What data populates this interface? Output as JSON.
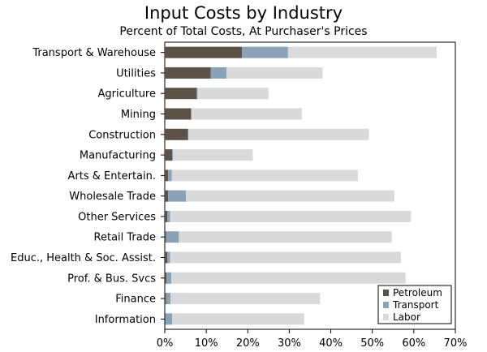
{
  "chart_data": {
    "type": "bar",
    "orientation": "horizontal",
    "stacked": true,
    "title": "Input Costs by Industry",
    "subtitle": "Percent of Total Costs, At Purchaser's Prices",
    "xlabel": "",
    "ylabel": "",
    "xlim": [
      0,
      70
    ],
    "xticks": [
      0,
      10,
      20,
      30,
      40,
      50,
      60,
      70
    ],
    "tick_suffix": "%",
    "legend_position": "bottom-right",
    "grid": false,
    "categories": [
      "Transport & Warehouse",
      "Utilities",
      "Agriculture",
      "Mining",
      "Construction",
      "Manufacturing",
      "Arts & Entertain.",
      "Wholesale Trade",
      "Other Services",
      "Retail Trade",
      "Educ., Health & Soc. Assist.",
      "Prof. & Bus. Svcs",
      "Finance",
      "Information"
    ],
    "series": [
      {
        "name": "Petroleum",
        "color": "#5c5248",
        "values": [
          18.6,
          11.1,
          7.7,
          6.3,
          5.6,
          1.8,
          0.8,
          0.8,
          0.6,
          0.3,
          0.6,
          0.4,
          0.3,
          0.2
        ]
      },
      {
        "name": "Transport",
        "color": "#8ba2b6",
        "values": [
          11.1,
          3.8,
          0.2,
          0.2,
          0.1,
          0.2,
          0.9,
          4.3,
          0.7,
          3.1,
          0.7,
          1.2,
          1.1,
          1.6
        ]
      },
      {
        "name": "Labor",
        "color": "#d9d9d9",
        "values": [
          35.8,
          23.1,
          17.1,
          26.5,
          43.5,
          19.2,
          44.8,
          50.2,
          58.0,
          51.3,
          55.6,
          56.4,
          36.0,
          31.8
        ]
      }
    ]
  }
}
